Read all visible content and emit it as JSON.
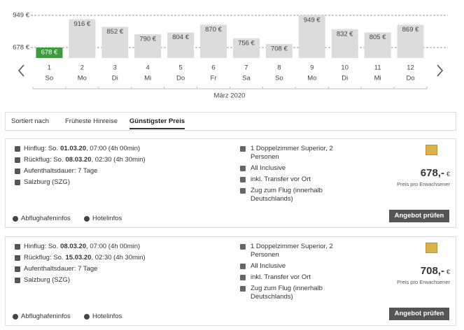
{
  "chart_data": {
    "type": "bar",
    "categories": [
      "1",
      "2",
      "3",
      "4",
      "5",
      "6",
      "7",
      "8",
      "9",
      "10",
      "11",
      "12"
    ],
    "weekdays": [
      "So",
      "Mo",
      "Di",
      "Mi",
      "Do",
      "Fr",
      "Sa",
      "So",
      "Mo",
      "Di",
      "Mi",
      "Do"
    ],
    "values": [
      678,
      916,
      852,
      790,
      804,
      870,
      756,
      708,
      949,
      832,
      805,
      869
    ],
    "value_labels": [
      "678 €",
      "916 €",
      "852 €",
      "790 €",
      "804 €",
      "870 €",
      "756 €",
      "708 €",
      "949 €",
      "832 €",
      "805 €",
      "869 €"
    ],
    "color": "#dcdcdc",
    "highlight_color": "#3f9b3f",
    "selected": 0,
    "ylim": [
      590,
      960
    ],
    "yticks": [
      {
        "value": 678,
        "label": "678 €"
      },
      {
        "value": 949,
        "label": "949 €"
      }
    ],
    "grid": true,
    "x_label": "März 2020"
  },
  "sort": {
    "label": "Sortiert nach",
    "options": [
      "Früheste Hinreise",
      "Günstigster Preis"
    ],
    "active": 1
  },
  "offers": [
    {
      "flights": [
        [
          "Hinflug: So.",
          "01.03.20",
          ", 07:00 (4h 00min)"
        ],
        [
          "Rückflug: So.",
          "08.03.20",
          ", 02:30 (4h 30min)"
        ]
      ],
      "stay": "Aufenthaltsdauer: 7 Tage",
      "airport": "Salzburg (SZG)",
      "hotel": [
        "1 Doppelzimmer Superior, 2 Personen",
        "All Inclusive",
        "inkl. Transfer vor Ort",
        "Zug zum Flug (innerhalb Deutschlands)"
      ],
      "price": "678,-",
      "currency": "€",
      "price_note": "Preis pro Erwachsener",
      "links": [
        "Abflughafeninfos",
        "Hotelinfos"
      ],
      "button": "Angebot prüfen"
    },
    {
      "flights": [
        [
          "Hinflug: So.",
          "08.03.20",
          ", 07:00 (4h 00min)"
        ],
        [
          "Rückflug: So.",
          "15.03.20",
          ", 02:30 (4h 30min)"
        ]
      ],
      "stay": "Aufenthaltsdauer: 7 Tage",
      "airport": "Salzburg (SZG)",
      "hotel": [
        "1 Doppelzimmer Superior, 2 Personen",
        "All Inclusive",
        "inkl. Transfer vor Ort",
        "Zug zum Flug (innerhalb Deutschlands)"
      ],
      "price": "708,-",
      "currency": "€",
      "price_note": "Preis pro Erwachsener",
      "links": [
        "Abflughafeninfos",
        "Hotelinfos"
      ],
      "button": "Angebot prüfen"
    }
  ]
}
